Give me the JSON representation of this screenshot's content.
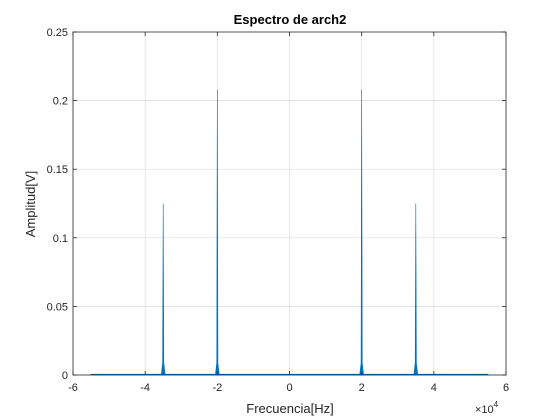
{
  "chart_data": {
    "type": "line",
    "title": "Espectro de arch2",
    "xlabel": "Frecuencia[Hz]",
    "ylabel": "Amplitud[V]",
    "xlim": [
      -60000,
      60000
    ],
    "ylim": [
      0,
      0.25
    ],
    "x_ticks": [
      -60000,
      -40000,
      -20000,
      0,
      20000,
      40000,
      60000
    ],
    "x_tick_labels": [
      "-6",
      "-4",
      "-2",
      "0",
      "2",
      "4",
      "6"
    ],
    "y_ticks": [
      0,
      0.05,
      0.1,
      0.15,
      0.2,
      0.25
    ],
    "y_tick_labels": [
      "0",
      "0.05",
      "0.1",
      "0.15",
      "0.2",
      "0.25"
    ],
    "x_multiplier_base": "×10",
    "x_multiplier_exp": "4",
    "grid": true,
    "series_color": "#0072BD",
    "frequency_range": [
      -55125,
      55125
    ],
    "peaks": [
      {
        "x": -35000,
        "y": 0.125
      },
      {
        "x": -20000,
        "y": 0.208
      },
      {
        "x": 20000,
        "y": 0.208
      },
      {
        "x": 35000,
        "y": 0.125
      }
    ]
  }
}
